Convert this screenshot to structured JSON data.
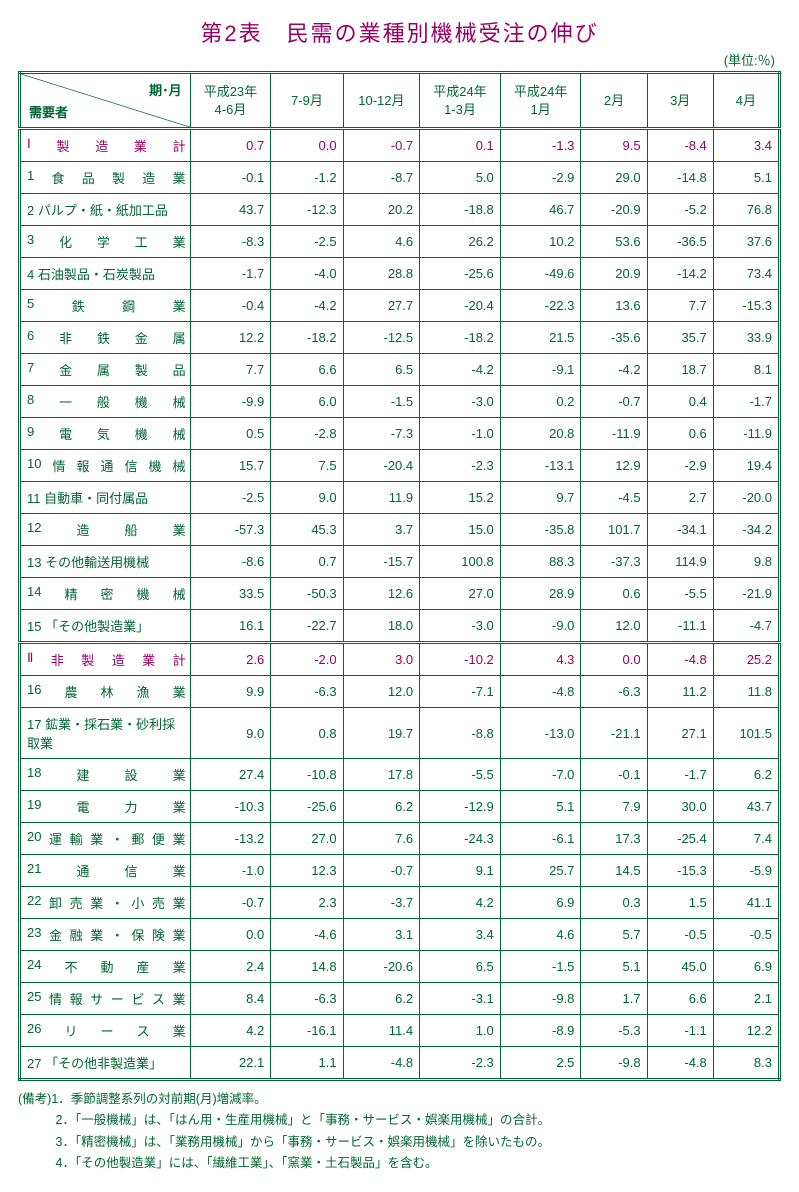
{
  "title": "第2表　民需の業種別機械受注の伸び",
  "unit": "(単位:％)",
  "colors": {
    "text": "#006633",
    "accent": "#990066",
    "background": "#ffffff"
  },
  "header": {
    "diag_top": "期･月",
    "diag_bottom": "需要者",
    "columns": [
      "平成23年\n4-6月",
      "7-9月",
      "10-12月",
      "平成24年\n1-3月",
      "平成24年\n1月",
      "2月",
      "3月",
      "4月"
    ]
  },
  "sections": [
    {
      "totalLabel": "Ⅰ 製 造 業 計",
      "totalValues": [
        "0.7",
        "0.0",
        "-0.7",
        "0.1",
        "-1.3",
        "9.5",
        "-8.4",
        "3.4"
      ],
      "rows": [
        {
          "label": "1 食 品 製 造 業",
          "values": [
            "-0.1",
            "-1.2",
            "-8.7",
            "5.0",
            "-2.9",
            "29.0",
            "-14.8",
            "5.1"
          ]
        },
        {
          "label": "2 パルプ・紙・紙加工品",
          "justify": false,
          "values": [
            "43.7",
            "-12.3",
            "20.2",
            "-18.8",
            "46.7",
            "-20.9",
            "-5.2",
            "76.8"
          ]
        },
        {
          "label": "3 化 学 工 業",
          "values": [
            "-8.3",
            "-2.5",
            "4.6",
            "26.2",
            "10.2",
            "53.6",
            "-36.5",
            "37.6"
          ]
        },
        {
          "label": "4 石油製品・石炭製品",
          "justify": false,
          "values": [
            "-1.7",
            "-4.0",
            "28.8",
            "-25.6",
            "-49.6",
            "20.9",
            "-14.2",
            "73.4"
          ]
        },
        {
          "label": "5 鉄 鋼 業",
          "values": [
            "-0.4",
            "-4.2",
            "27.7",
            "-20.4",
            "-22.3",
            "13.6",
            "7.7",
            "-15.3"
          ]
        },
        {
          "label": "6 非 鉄 金 属",
          "values": [
            "12.2",
            "-18.2",
            "-12.5",
            "-18.2",
            "21.5",
            "-35.6",
            "35.7",
            "33.9"
          ]
        },
        {
          "label": "7 金 属 製 品",
          "values": [
            "7.7",
            "6.6",
            "6.5",
            "-4.2",
            "-9.1",
            "-4.2",
            "18.7",
            "8.1"
          ]
        },
        {
          "label": "8 一 般 機 械",
          "values": [
            "-9.9",
            "6.0",
            "-1.5",
            "-3.0",
            "0.2",
            "-0.7",
            "0.4",
            "-1.7"
          ]
        },
        {
          "label": "9 電 気 機 械",
          "values": [
            "0.5",
            "-2.8",
            "-7.3",
            "-1.0",
            "20.8",
            "-11.9",
            "0.6",
            "-11.9"
          ]
        },
        {
          "label": "10 情 報 通 信 機 械",
          "values": [
            "15.7",
            "7.5",
            "-20.4",
            "-2.3",
            "-13.1",
            "12.9",
            "-2.9",
            "19.4"
          ]
        },
        {
          "label": "11 自動車・同付属品",
          "justify": false,
          "values": [
            "-2.5",
            "9.0",
            "11.9",
            "15.2",
            "9.7",
            "-4.5",
            "2.7",
            "-20.0"
          ]
        },
        {
          "label": "12 造 船 業",
          "values": [
            "-57.3",
            "45.3",
            "3.7",
            "15.0",
            "-35.8",
            "101.7",
            "-34.1",
            "-34.2"
          ]
        },
        {
          "label": "13 その他輸送用機械",
          "justify": false,
          "values": [
            "-8.6",
            "0.7",
            "-15.7",
            "100.8",
            "88.3",
            "-37.3",
            "114.9",
            "9.8"
          ]
        },
        {
          "label": "14 精 密 機 械",
          "values": [
            "33.5",
            "-50.3",
            "12.6",
            "27.0",
            "28.9",
            "0.6",
            "-5.5",
            "-21.9"
          ]
        },
        {
          "label": "15 「その他製造業」",
          "justify": false,
          "values": [
            "16.1",
            "-22.7",
            "18.0",
            "-3.0",
            "-9.0",
            "12.0",
            "-11.1",
            "-4.7"
          ]
        }
      ]
    },
    {
      "totalLabel": "Ⅱ 非 製 造 業 計",
      "totalValues": [
        "2.6",
        "-2.0",
        "3.0",
        "-10.2",
        "4.3",
        "0.0",
        "-4.8",
        "25.2"
      ],
      "rows": [
        {
          "label": "16 農 林 漁 業",
          "values": [
            "9.9",
            "-6.3",
            "12.0",
            "-7.1",
            "-4.8",
            "-6.3",
            "11.2",
            "11.8"
          ]
        },
        {
          "label": "17 鉱業・採石業・砂利採取業",
          "justify": false,
          "values": [
            "9.0",
            "0.8",
            "19.7",
            "-8.8",
            "-13.0",
            "-21.1",
            "27.1",
            "101.5"
          ]
        },
        {
          "label": "18 建 設 業",
          "values": [
            "27.4",
            "-10.8",
            "17.8",
            "-5.5",
            "-7.0",
            "-0.1",
            "-1.7",
            "6.2"
          ]
        },
        {
          "label": "19 電 力 業",
          "values": [
            "-10.3",
            "-25.6",
            "6.2",
            "-12.9",
            "5.1",
            "7.9",
            "30.0",
            "43.7"
          ]
        },
        {
          "label": "20 運 輸 業 ・ 郵 便 業",
          "values": [
            "-13.2",
            "27.0",
            "7.6",
            "-24.3",
            "-6.1",
            "17.3",
            "-25.4",
            "7.4"
          ]
        },
        {
          "label": "21 通 信 業",
          "values": [
            "-1.0",
            "12.3",
            "-0.7",
            "9.1",
            "25.7",
            "14.5",
            "-15.3",
            "-5.9"
          ]
        },
        {
          "label": "22 卸 売 業 ・ 小 売 業",
          "values": [
            "-0.7",
            "2.3",
            "-3.7",
            "4.2",
            "6.9",
            "0.3",
            "1.5",
            "41.1"
          ]
        },
        {
          "label": "23 金 融 業 ・ 保 険 業",
          "values": [
            "0.0",
            "-4.6",
            "3.1",
            "3.4",
            "4.6",
            "5.7",
            "-0.5",
            "-0.5"
          ]
        },
        {
          "label": "24 不 動 産 業",
          "values": [
            "2.4",
            "14.8",
            "-20.6",
            "6.5",
            "-1.5",
            "5.1",
            "45.0",
            "6.9"
          ]
        },
        {
          "label": "25 情 報 サ ー ビ ス 業",
          "values": [
            "8.4",
            "-6.3",
            "6.2",
            "-3.1",
            "-9.8",
            "1.7",
            "6.6",
            "2.1"
          ]
        },
        {
          "label": "26 リ ー ス 業",
          "values": [
            "4.2",
            "-16.1",
            "11.4",
            "1.0",
            "-8.9",
            "-5.3",
            "-1.1",
            "12.2"
          ]
        },
        {
          "label": "27 「その他非製造業」",
          "justify": false,
          "values": [
            "22.1",
            "1.1",
            "-4.8",
            "-2.3",
            "2.5",
            "-9.8",
            "-4.8",
            "8.3"
          ]
        }
      ]
    }
  ],
  "notes": [
    "(備考)1．季節調整系列の対前期(月)増減率。",
    "2．「一般機械」は、「はん用・生産用機械」と「事務・サービス・娯楽用機械」の合計。",
    "3．「精密機械」は、「業務用機械」から「事務・サービス・娯楽用機械」を除いたもの。",
    "4．「その他製造業」には、「繊維工業」、「窯業・土石製品」を含む。"
  ]
}
